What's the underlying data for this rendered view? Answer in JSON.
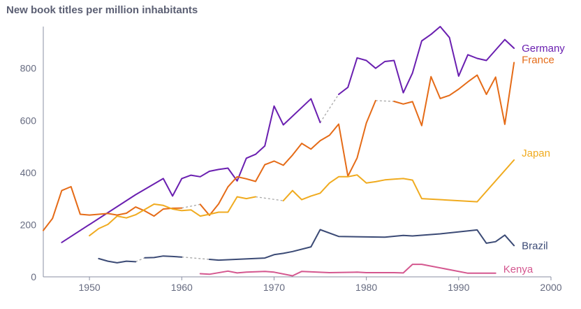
{
  "chart_data": {
    "type": "line",
    "title": "New book titles per million inhabitants",
    "xlabel": "",
    "ylabel": "",
    "xlim": [
      1945,
      2000
    ],
    "ylim": [
      0,
      960
    ],
    "x_ticks": [
      1950,
      1960,
      1970,
      1980,
      1990,
      2000
    ],
    "y_ticks": [
      0,
      200,
      400,
      600,
      800
    ],
    "grid": false,
    "legend": "inline-right",
    "series": [
      {
        "name": "Germany",
        "color": "#6a1fb0",
        "points": [
          [
            1947,
            132
          ],
          [
            1955,
            315
          ],
          [
            1958,
            377
          ],
          [
            1959,
            310
          ],
          [
            1960,
            377
          ],
          [
            1961,
            390
          ],
          [
            1962,
            384
          ],
          [
            1963,
            405
          ],
          [
            1964,
            412
          ],
          [
            1965,
            417
          ],
          [
            1966,
            368
          ],
          [
            1967,
            455
          ],
          [
            1968,
            470
          ],
          [
            1969,
            502
          ],
          [
            1970,
            655
          ],
          [
            1971,
            583
          ],
          [
            1974,
            683
          ],
          [
            1975,
            592
          ],
          null,
          [
            1977,
            700
          ],
          [
            1978,
            727
          ],
          [
            1979,
            840
          ],
          [
            1980,
            830
          ],
          [
            1981,
            800
          ],
          [
            1982,
            826
          ],
          [
            1983,
            830
          ],
          [
            1984,
            706
          ],
          [
            1985,
            782
          ],
          [
            1986,
            905
          ],
          [
            1987,
            930
          ],
          [
            1988,
            960
          ],
          [
            1989,
            918
          ],
          [
            1990,
            770
          ],
          [
            1991,
            852
          ],
          [
            1992,
            838
          ],
          [
            1993,
            830
          ],
          [
            1995,
            910
          ],
          [
            1996,
            877
          ]
        ]
      },
      {
        "name": "France",
        "color": "#e56b17",
        "points": [
          [
            1945,
            178
          ],
          [
            1946,
            224
          ],
          [
            1947,
            331
          ],
          [
            1948,
            346
          ],
          [
            1949,
            240
          ],
          [
            1950,
            237
          ],
          [
            1951,
            240
          ],
          [
            1952,
            243
          ],
          [
            1953,
            237
          ],
          [
            1954,
            244
          ],
          [
            1955,
            268
          ],
          [
            1956,
            253
          ],
          [
            1957,
            233
          ],
          [
            1958,
            260
          ],
          [
            1959,
            263
          ],
          [
            1960,
            264
          ],
          null,
          [
            1962,
            278
          ],
          [
            1963,
            236
          ],
          [
            1964,
            280
          ],
          [
            1965,
            345
          ],
          [
            1966,
            384
          ],
          [
            1967,
            376
          ],
          [
            1968,
            366
          ],
          [
            1969,
            430
          ],
          [
            1970,
            444
          ],
          [
            1971,
            428
          ],
          [
            1972,
            467
          ],
          [
            1973,
            512
          ],
          [
            1974,
            490
          ],
          [
            1975,
            522
          ],
          [
            1976,
            543
          ],
          [
            1977,
            586
          ],
          [
            1978,
            386
          ],
          [
            1979,
            456
          ],
          [
            1980,
            590
          ],
          [
            1981,
            676
          ],
          null,
          [
            1983,
            673
          ],
          [
            1984,
            663
          ],
          [
            1985,
            672
          ],
          [
            1986,
            580
          ],
          [
            1987,
            768
          ],
          [
            1988,
            684
          ],
          [
            1989,
            696
          ],
          [
            1990,
            720
          ],
          [
            1991,
            748
          ],
          [
            1992,
            774
          ],
          [
            1993,
            700
          ],
          [
            1994,
            766
          ],
          [
            1995,
            585
          ],
          [
            1996,
            822
          ]
        ]
      },
      {
        "name": "Japan",
        "color": "#f0ab1f",
        "points": [
          [
            1950,
            158
          ],
          [
            1951,
            185
          ],
          [
            1952,
            201
          ],
          [
            1953,
            233
          ],
          [
            1954,
            226
          ],
          [
            1955,
            238
          ],
          [
            1957,
            279
          ],
          [
            1958,
            274
          ],
          [
            1959,
            260
          ],
          [
            1960,
            254
          ],
          [
            1961,
            257
          ],
          [
            1962,
            233
          ],
          [
            1963,
            240
          ],
          [
            1964,
            248
          ],
          [
            1965,
            248
          ],
          [
            1966,
            307
          ],
          [
            1967,
            300
          ],
          [
            1968,
            307
          ],
          null,
          [
            1971,
            292
          ],
          [
            1972,
            331
          ],
          [
            1973,
            296
          ],
          [
            1974,
            310
          ],
          [
            1975,
            321
          ],
          [
            1976,
            360
          ],
          [
            1977,
            384
          ],
          [
            1978,
            384
          ],
          [
            1979,
            391
          ],
          [
            1980,
            360
          ],
          [
            1981,
            365
          ],
          [
            1982,
            372
          ],
          [
            1983,
            375
          ],
          [
            1984,
            377
          ],
          [
            1985,
            371
          ],
          [
            1986,
            300
          ],
          [
            1992,
            288
          ],
          [
            1996,
            448
          ]
        ]
      },
      {
        "name": "Brazil",
        "color": "#3b4a75",
        "points": [
          [
            1951,
            70
          ],
          [
            1952,
            60
          ],
          [
            1953,
            54
          ],
          [
            1954,
            60
          ],
          [
            1955,
            58
          ],
          null,
          [
            1956,
            73
          ],
          [
            1957,
            74
          ],
          [
            1958,
            80
          ],
          [
            1959,
            78
          ],
          [
            1960,
            76
          ],
          null,
          [
            1963,
            67
          ],
          [
            1964,
            64
          ],
          [
            1969,
            72
          ],
          [
            1970,
            85
          ],
          [
            1971,
            90
          ],
          [
            1972,
            97
          ],
          [
            1974,
            115
          ],
          [
            1975,
            181
          ],
          [
            1977,
            155
          ],
          [
            1982,
            152
          ],
          [
            1984,
            159
          ],
          [
            1985,
            157
          ],
          [
            1988,
            165
          ],
          [
            1992,
            180
          ],
          [
            1993,
            129
          ],
          [
            1994,
            135
          ],
          [
            1995,
            160
          ],
          [
            1996,
            120
          ]
        ]
      },
      {
        "name": "Kenya",
        "color": "#d4578f",
        "points": [
          [
            1962,
            12
          ],
          [
            1963,
            10
          ],
          [
            1965,
            22
          ],
          [
            1966,
            15
          ],
          [
            1967,
            18
          ],
          [
            1969,
            21
          ],
          [
            1970,
            18
          ],
          [
            1972,
            4
          ],
          [
            1973,
            21
          ],
          [
            1976,
            16
          ],
          [
            1979,
            18
          ],
          [
            1980,
            16
          ],
          [
            1982,
            16
          ],
          [
            1983,
            16
          ],
          [
            1984,
            15
          ],
          [
            1985,
            48
          ],
          [
            1986,
            48
          ],
          [
            1991,
            14
          ],
          [
            1994,
            14
          ]
        ]
      }
    ]
  }
}
